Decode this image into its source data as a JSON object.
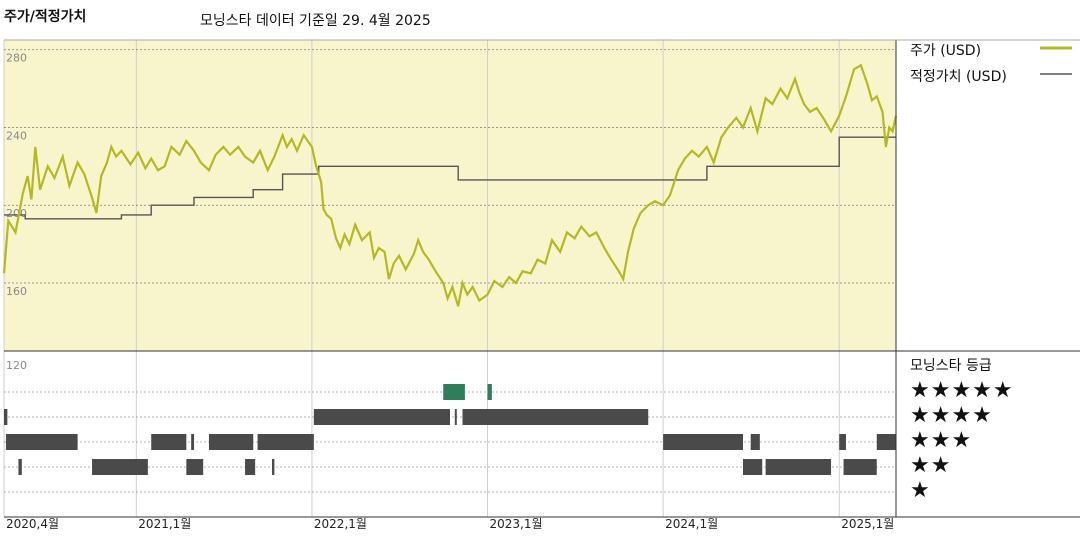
{
  "header": {
    "left_title": "주가/적정가치",
    "subtitle": "모닝스타 데이터 기준일 29. 4월 2025"
  },
  "legend": {
    "price_label": "주가 (USD)",
    "fair_value_label": "적정가치 (USD)",
    "price_color": "#b5b823",
    "fair_value_color": "#555555",
    "rating_title": "모닝스타 등급",
    "star_rows": [
      "★★★★★",
      "★★★★",
      "★★★",
      "★★",
      "★"
    ]
  },
  "chart_data": {
    "type": "line",
    "title": "",
    "xlabel": "",
    "ylabel": "",
    "x_start": "2020-04-01",
    "x_end": "2025-04-29",
    "ylim": [
      125,
      285
    ],
    "y_ticks": [
      280,
      240,
      200,
      160,
      120
    ],
    "x_ticks": [
      {
        "label": "2020,4월",
        "date": "2020-04-01"
      },
      {
        "label": "2021,1월",
        "date": "2021-01-01"
      },
      {
        "label": "2022,1월",
        "date": "2022-01-01"
      },
      {
        "label": "2023,1월",
        "date": "2023-01-01"
      },
      {
        "label": "2024,1월",
        "date": "2024-01-01"
      },
      {
        "label": "2025,1월",
        "date": "2025-01-01"
      }
    ],
    "series": [
      {
        "name": "주가 (USD)",
        "color": "#b5b823",
        "points": [
          [
            "2020-04-01",
            165
          ],
          [
            "2020-04-10",
            192
          ],
          [
            "2020-04-25",
            186
          ],
          [
            "2020-05-10",
            206
          ],
          [
            "2020-05-20",
            215
          ],
          [
            "2020-05-28",
            203
          ],
          [
            "2020-06-05",
            230
          ],
          [
            "2020-06-15",
            208
          ],
          [
            "2020-07-01",
            220
          ],
          [
            "2020-07-15",
            214
          ],
          [
            "2020-08-01",
            225
          ],
          [
            "2020-08-15",
            210
          ],
          [
            "2020-09-01",
            222
          ],
          [
            "2020-09-15",
            216
          ],
          [
            "2020-10-01",
            204
          ],
          [
            "2020-10-10",
            196
          ],
          [
            "2020-10-20",
            215
          ],
          [
            "2020-11-01",
            222
          ],
          [
            "2020-11-10",
            230
          ],
          [
            "2020-11-20",
            225
          ],
          [
            "2020-12-01",
            228
          ],
          [
            "2020-12-20",
            221
          ],
          [
            "2021-01-05",
            227
          ],
          [
            "2021-01-20",
            219
          ],
          [
            "2021-02-01",
            224
          ],
          [
            "2021-02-15",
            218
          ],
          [
            "2021-03-01",
            220
          ],
          [
            "2021-03-15",
            230
          ],
          [
            "2021-04-01",
            226
          ],
          [
            "2021-04-15",
            233
          ],
          [
            "2021-05-01",
            228
          ],
          [
            "2021-05-15",
            222
          ],
          [
            "2021-06-01",
            218
          ],
          [
            "2021-06-15",
            226
          ],
          [
            "2021-07-01",
            230
          ],
          [
            "2021-07-15",
            226
          ],
          [
            "2021-08-01",
            230
          ],
          [
            "2021-08-15",
            225
          ],
          [
            "2021-09-01",
            222
          ],
          [
            "2021-09-15",
            228
          ],
          [
            "2021-10-01",
            218
          ],
          [
            "2021-10-15",
            225
          ],
          [
            "2021-11-01",
            236
          ],
          [
            "2021-11-10",
            230
          ],
          [
            "2021-11-20",
            234
          ],
          [
            "2021-12-01",
            228
          ],
          [
            "2021-12-15",
            236
          ],
          [
            "2022-01-01",
            230
          ],
          [
            "2022-01-10",
            220
          ],
          [
            "2022-01-20",
            212
          ],
          [
            "2022-01-25",
            198
          ],
          [
            "2022-02-01",
            195
          ],
          [
            "2022-02-10",
            193
          ],
          [
            "2022-02-20",
            183
          ],
          [
            "2022-03-01",
            178
          ],
          [
            "2022-03-10",
            185
          ],
          [
            "2022-03-20",
            180
          ],
          [
            "2022-04-01",
            190
          ],
          [
            "2022-04-15",
            182
          ],
          [
            "2022-05-01",
            186
          ],
          [
            "2022-05-10",
            173
          ],
          [
            "2022-05-20",
            178
          ],
          [
            "2022-06-01",
            176
          ],
          [
            "2022-06-10",
            162
          ],
          [
            "2022-06-20",
            170
          ],
          [
            "2022-07-01",
            174
          ],
          [
            "2022-07-15",
            167
          ],
          [
            "2022-08-01",
            175
          ],
          [
            "2022-08-10",
            182
          ],
          [
            "2022-08-20",
            176
          ],
          [
            "2022-09-01",
            172
          ],
          [
            "2022-09-15",
            166
          ],
          [
            "2022-10-01",
            160
          ],
          [
            "2022-10-10",
            152
          ],
          [
            "2022-10-20",
            158
          ],
          [
            "2022-11-01",
            148
          ],
          [
            "2022-11-10",
            160
          ],
          [
            "2022-11-20",
            154
          ],
          [
            "2022-12-01",
            158
          ],
          [
            "2022-12-15",
            151
          ],
          [
            "2023-01-01",
            154
          ],
          [
            "2023-01-15",
            161
          ],
          [
            "2023-02-01",
            158
          ],
          [
            "2023-02-15",
            163
          ],
          [
            "2023-03-01",
            160
          ],
          [
            "2023-03-15",
            166
          ],
          [
            "2023-04-01",
            165
          ],
          [
            "2023-04-15",
            172
          ],
          [
            "2023-05-01",
            170
          ],
          [
            "2023-05-15",
            182
          ],
          [
            "2023-06-01",
            176
          ],
          [
            "2023-06-15",
            186
          ],
          [
            "2023-07-01",
            183
          ],
          [
            "2023-07-15",
            189
          ],
          [
            "2023-08-01",
            184
          ],
          [
            "2023-08-15",
            186
          ],
          [
            "2023-09-01",
            178
          ],
          [
            "2023-09-15",
            172
          ],
          [
            "2023-10-01",
            166
          ],
          [
            "2023-10-10",
            162
          ],
          [
            "2023-10-20",
            176
          ],
          [
            "2023-11-01",
            188
          ],
          [
            "2023-11-15",
            196
          ],
          [
            "2023-12-01",
            200
          ],
          [
            "2023-12-15",
            202
          ],
          [
            "2024-01-01",
            200
          ],
          [
            "2024-01-15",
            205
          ],
          [
            "2024-02-01",
            218
          ],
          [
            "2024-02-15",
            224
          ],
          [
            "2024-03-01",
            228
          ],
          [
            "2024-03-15",
            225
          ],
          [
            "2024-04-01",
            230
          ],
          [
            "2024-04-15",
            222
          ],
          [
            "2024-05-01",
            235
          ],
          [
            "2024-05-15",
            240
          ],
          [
            "2024-06-01",
            245
          ],
          [
            "2024-06-15",
            240
          ],
          [
            "2024-07-01",
            250
          ],
          [
            "2024-07-15",
            238
          ],
          [
            "2024-08-01",
            255
          ],
          [
            "2024-08-15",
            252
          ],
          [
            "2024-09-01",
            260
          ],
          [
            "2024-09-15",
            255
          ],
          [
            "2024-10-01",
            265
          ],
          [
            "2024-10-10",
            258
          ],
          [
            "2024-10-20",
            252
          ],
          [
            "2024-11-01",
            248
          ],
          [
            "2024-11-15",
            250
          ],
          [
            "2024-12-01",
            244
          ],
          [
            "2024-12-15",
            238
          ],
          [
            "2025-01-01",
            246
          ],
          [
            "2025-01-15",
            256
          ],
          [
            "2025-02-01",
            270
          ],
          [
            "2025-02-15",
            272
          ],
          [
            "2025-03-01",
            262
          ],
          [
            "2025-03-10",
            254
          ],
          [
            "2025-03-20",
            256
          ],
          [
            "2025-04-01",
            248
          ],
          [
            "2025-04-08",
            230
          ],
          [
            "2025-04-15",
            240
          ],
          [
            "2025-04-22",
            238
          ],
          [
            "2025-04-29",
            246
          ]
        ]
      },
      {
        "name": "적정가치 (USD)",
        "color": "#555555",
        "points": [
          [
            "2020-04-01",
            195
          ],
          [
            "2020-05-15",
            195
          ],
          [
            "2020-05-15",
            193
          ],
          [
            "2020-12-01",
            193
          ],
          [
            "2020-12-01",
            195
          ],
          [
            "2021-02-01",
            195
          ],
          [
            "2021-02-01",
            200
          ],
          [
            "2021-05-01",
            200
          ],
          [
            "2021-05-01",
            204
          ],
          [
            "2021-09-01",
            204
          ],
          [
            "2021-09-01",
            208
          ],
          [
            "2021-11-01",
            208
          ],
          [
            "2021-11-01",
            216
          ],
          [
            "2022-01-15",
            216
          ],
          [
            "2022-01-15",
            220
          ],
          [
            "2022-11-01",
            220
          ],
          [
            "2022-11-01",
            213
          ],
          [
            "2024-04-01",
            213
          ],
          [
            "2024-04-01",
            220
          ],
          [
            "2025-01-01",
            220
          ],
          [
            "2025-01-01",
            235
          ],
          [
            "2025-04-29",
            235
          ]
        ]
      }
    ],
    "rating_segments": {
      "5": [
        [
          "2022-10-01",
          "2022-11-15"
        ],
        [
          "2023-01-01",
          "2023-01-10"
        ]
      ],
      "4": [
        [
          "2020-04-01",
          "2020-04-08"
        ],
        [
          "2022-01-05",
          "2022-10-15"
        ],
        [
          "2022-10-25",
          "2022-10-28"
        ],
        [
          "2022-11-10",
          "2023-12-01"
        ]
      ],
      "3": [
        [
          "2020-04-05",
          "2020-09-01"
        ],
        [
          "2021-02-01",
          "2021-04-15"
        ],
        [
          "2021-04-25",
          "2021-05-01"
        ],
        [
          "2021-06-01",
          "2021-09-01"
        ],
        [
          "2021-09-10",
          "2022-01-05"
        ],
        [
          "2024-01-01",
          "2024-06-15"
        ],
        [
          "2024-07-01",
          "2024-07-20"
        ],
        [
          "2025-01-01",
          "2025-01-15"
        ],
        [
          "2025-03-20",
          "2025-04-29"
        ]
      ],
      "2": [
        [
          "2020-05-01",
          "2020-05-08"
        ],
        [
          "2020-10-01",
          "2021-01-25"
        ],
        [
          "2021-04-15",
          "2021-05-20"
        ],
        [
          "2021-08-15",
          "2021-09-05"
        ],
        [
          "2021-10-10",
          "2021-10-15"
        ],
        [
          "2024-06-15",
          "2024-07-25"
        ],
        [
          "2024-08-01",
          "2024-12-15"
        ],
        [
          "2025-01-10",
          "2025-03-20"
        ]
      ],
      "1": []
    }
  }
}
